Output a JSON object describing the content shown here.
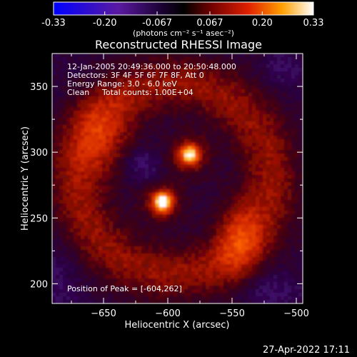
{
  "colorbar": {
    "ticks": [
      "-0.33",
      "-0.20",
      "-0.067",
      "0.067",
      "0.20",
      "0.33"
    ],
    "tick_values": [
      -0.33,
      -0.2,
      -0.067,
      0.067,
      0.2,
      0.33
    ],
    "range": [
      -0.33,
      0.33
    ],
    "units": "(photons cm⁻² s⁻¹ asec⁻²)",
    "colors": [
      "#0000ff",
      "#6a0dad",
      "#2a0040",
      "#000000",
      "#8b0000",
      "#ff3300",
      "#ffaa00",
      "#ffffff"
    ]
  },
  "chart_data": {
    "type": "heatmap",
    "title": "Reconstructed RHESSI Image",
    "xlabel": "Heliocentric X (arcsec)",
    "ylabel": "Heliocentric Y (arcsec)",
    "xlim": [
      -690,
      -495
    ],
    "ylim": [
      185,
      375
    ],
    "xticks": [
      -650,
      -600,
      -550,
      -500
    ],
    "xtick_labels": [
      "−650",
      "−600",
      "−550",
      "−500"
    ],
    "yticks": [
      200,
      250,
      300,
      350
    ],
    "ytick_labels": [
      "200",
      "250",
      "300",
      "350"
    ],
    "peak": {
      "x": -604,
      "y": 262
    },
    "sources": [
      {
        "x": -604,
        "y": 262,
        "intensity": 0.33
      },
      {
        "x": -583,
        "y": 298,
        "intensity": 0.28
      }
    ],
    "annotations": {
      "time_range": "12-Jan-2005 20:49:36.000 to 20:50:48.000",
      "detectors": "Detectors: 3F 4F 5F 6F 7F 8F, Att 0",
      "energy": "Energy Range: 3.0 - 6.0 keV",
      "method": "Clean",
      "total_counts": "Total counts: 1.00E+04",
      "peak_label": "Position of Peak = [-604,262]"
    }
  },
  "footer": {
    "timestamp": "27-Apr-2022 17:11"
  }
}
